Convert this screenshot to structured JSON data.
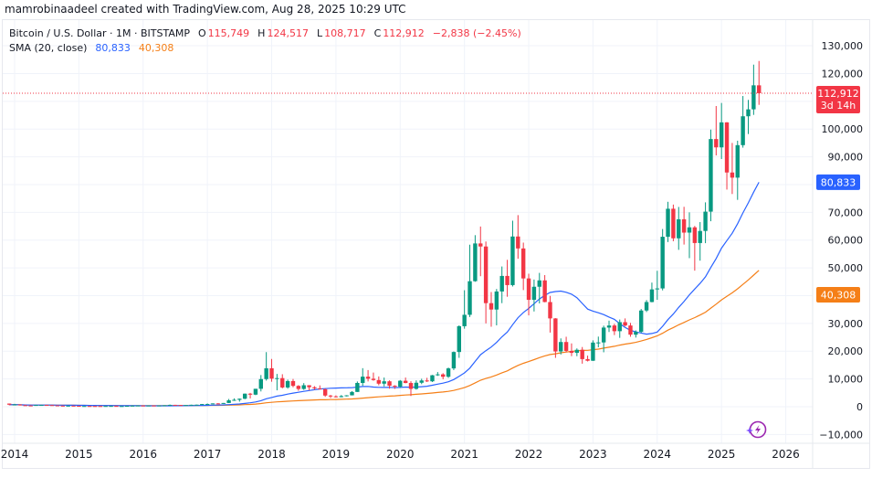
{
  "credit": "mamrobinaadeel created with TradingView.com, Aug 28, 2025 10:29 UTC",
  "legend": {
    "symbol": "Bitcoin / U.S. Dollar · 1M · BITSTAMP",
    "o_label": "O",
    "o": "115,749",
    "h_label": "H",
    "h": "124,517",
    "l_label": "L",
    "l": "108,717",
    "c_label": "C",
    "c": "112,912",
    "change": "−2,838 (−2.45%)",
    "sma_label": "SMA (20, close)",
    "sma1": "80,833",
    "sma2": "40,308"
  },
  "price_labels": {
    "last": "112,912",
    "countdown": "3d 14h",
    "sma1": "80,833",
    "sma2": "40,308"
  },
  "colors": {
    "up": "#089981",
    "down": "#f23645",
    "sma1": "#2962ff",
    "sma2": "#f57f17",
    "grid": "#f0f3fa"
  },
  "icons": {
    "bottom_right": "tradingview-assistant-lightning-icon"
  },
  "chart_data": {
    "type": "candlestick",
    "interval": "1M",
    "ylim": [
      -10000,
      130000
    ],
    "y_ticks": [
      "130,000",
      "120,000",
      "100,000",
      "90,000",
      "70,000",
      "60,000",
      "50,000",
      "30,000",
      "20,000",
      "10,000",
      "0",
      "−10,000"
    ],
    "y_tick_values": [
      130000,
      120000,
      100000,
      90000,
      70000,
      60000,
      50000,
      30000,
      20000,
      10000,
      0,
      -10000
    ],
    "x_ticks": [
      "2014",
      "2015",
      "2016",
      "2017",
      "2018",
      "2019",
      "2020",
      "2021",
      "2022",
      "2023",
      "2024",
      "2025",
      "2026"
    ],
    "grid": true,
    "last_price": 112912,
    "sma_values": [
      80833,
      40308
    ],
    "candles_columns": [
      "month",
      "open",
      "high",
      "low",
      "close"
    ],
    "candles": [
      [
        "2013-12",
        1129,
        1163,
        522,
        732
      ],
      [
        "2014-01",
        732,
        1020,
        740,
        800
      ],
      [
        "2014-02",
        800,
        800,
        420,
        550
      ],
      [
        "2014-03",
        550,
        720,
        440,
        450
      ],
      [
        "2014-04",
        450,
        550,
        340,
        445
      ],
      [
        "2014-05",
        445,
        630,
        430,
        625
      ],
      [
        "2014-06",
        625,
        680,
        560,
        640
      ],
      [
        "2014-07",
        640,
        660,
        570,
        585
      ],
      [
        "2014-08",
        585,
        600,
        440,
        480
      ],
      [
        "2014-09",
        480,
        490,
        360,
        387
      ],
      [
        "2014-10",
        387,
        415,
        275,
        338
      ],
      [
        "2014-11",
        338,
        460,
        320,
        378
      ],
      [
        "2014-12",
        378,
        390,
        305,
        320
      ],
      [
        "2015-01",
        320,
        320,
        166,
        218
      ],
      [
        "2015-02",
        218,
        265,
        212,
        254
      ],
      [
        "2015-03",
        254,
        300,
        235,
        244
      ],
      [
        "2015-04",
        244,
        262,
        214,
        236
      ],
      [
        "2015-05",
        236,
        248,
        227,
        230
      ],
      [
        "2015-06",
        230,
        268,
        220,
        263
      ],
      [
        "2015-07",
        263,
        318,
        255,
        284
      ],
      [
        "2015-08",
        284,
        285,
        197,
        230
      ],
      [
        "2015-09",
        230,
        245,
        225,
        236
      ],
      [
        "2015-10",
        236,
        335,
        236,
        314
      ],
      [
        "2015-11",
        314,
        495,
        306,
        377
      ],
      [
        "2015-12",
        377,
        465,
        350,
        430
      ],
      [
        "2016-01",
        430,
        465,
        350,
        368
      ],
      [
        "2016-02",
        368,
        440,
        365,
        437
      ],
      [
        "2016-03",
        437,
        440,
        405,
        416
      ],
      [
        "2016-04",
        416,
        468,
        412,
        448
      ],
      [
        "2016-05",
        448,
        550,
        436,
        531
      ],
      [
        "2016-06",
        531,
        780,
        530,
        673
      ],
      [
        "2016-07",
        673,
        705,
        600,
        624
      ],
      [
        "2016-08",
        624,
        625,
        480,
        573
      ],
      [
        "2016-09",
        573,
        612,
        570,
        608
      ],
      [
        "2016-10",
        608,
        720,
        605,
        700
      ],
      [
        "2016-11",
        700,
        760,
        680,
        742
      ],
      [
        "2016-12",
        742,
        975,
        740,
        963
      ],
      [
        "2017-01",
        963,
        1160,
        750,
        970
      ],
      [
        "2017-02",
        970,
        1215,
        915,
        1190
      ],
      [
        "2017-03",
        1190,
        1300,
        890,
        1080
      ],
      [
        "2017-04",
        1080,
        1350,
        1060,
        1348
      ],
      [
        "2017-05",
        1348,
        2790,
        1340,
        2300
      ],
      [
        "2017-06",
        2300,
        3000,
        2100,
        2480
      ],
      [
        "2017-07",
        2480,
        2950,
        1830,
        2875
      ],
      [
        "2017-08",
        2875,
        4760,
        2700,
        4700
      ],
      [
        "2017-09",
        4700,
        4980,
        2970,
        4340
      ],
      [
        "2017-10",
        4340,
        6450,
        4160,
        6450
      ],
      [
        "2017-11",
        6450,
        11400,
        5500,
        9950
      ],
      [
        "2017-12",
        9950,
        19666,
        9400,
        13850
      ],
      [
        "2018-01",
        13850,
        17200,
        9000,
        10100
      ],
      [
        "2018-02",
        10100,
        11800,
        5900,
        10300
      ],
      [
        "2018-03",
        10300,
        11700,
        6600,
        6930
      ],
      [
        "2018-04",
        6930,
        9760,
        6500,
        9240
      ],
      [
        "2018-05",
        9240,
        10000,
        7000,
        7500
      ],
      [
        "2018-06",
        7500,
        7760,
        5750,
        6390
      ],
      [
        "2018-07",
        6390,
        8500,
        6070,
        7730
      ],
      [
        "2018-08",
        7730,
        7760,
        5880,
        7010
      ],
      [
        "2018-09",
        7010,
        7400,
        6100,
        6625
      ],
      [
        "2018-10",
        6625,
        7680,
        6200,
        6300
      ],
      [
        "2018-11",
        6300,
        6580,
        3550,
        4020
      ],
      [
        "2018-12",
        4020,
        4250,
        3120,
        3740
      ],
      [
        "2019-01",
        3740,
        4080,
        3350,
        3450
      ],
      [
        "2019-02",
        3450,
        4200,
        3380,
        3820
      ],
      [
        "2019-03",
        3820,
        4150,
        3700,
        4100
      ],
      [
        "2019-04",
        4100,
        5600,
        4070,
        5320
      ],
      [
        "2019-05",
        5320,
        9090,
        5320,
        8560
      ],
      [
        "2019-06",
        8560,
        13880,
        7500,
        10820
      ],
      [
        "2019-07",
        10820,
        13200,
        9100,
        10080
      ],
      [
        "2019-08",
        10080,
        12300,
        9350,
        9600
      ],
      [
        "2019-09",
        9600,
        10900,
        7700,
        8300
      ],
      [
        "2019-10",
        8300,
        10500,
        7300,
        9150
      ],
      [
        "2019-11",
        9150,
        9500,
        6500,
        7550
      ],
      [
        "2019-12",
        7550,
        7750,
        6420,
        7190
      ],
      [
        "2020-01",
        7190,
        9600,
        6850,
        9350
      ],
      [
        "2020-02",
        9350,
        10500,
        8450,
        8540
      ],
      [
        "2020-03",
        8540,
        9180,
        3850,
        6420
      ],
      [
        "2020-04",
        6420,
        9480,
        6150,
        8630
      ],
      [
        "2020-05",
        8630,
        10080,
        8120,
        9450
      ],
      [
        "2020-06",
        9450,
        10400,
        8900,
        9140
      ],
      [
        "2020-07",
        9140,
        11440,
        8900,
        11330
      ],
      [
        "2020-08",
        11330,
        12480,
        11100,
        11650
      ],
      [
        "2020-09",
        11650,
        12070,
        9880,
        10780
      ],
      [
        "2020-10",
        10780,
        14100,
        10400,
        13800
      ],
      [
        "2020-11",
        13800,
        19900,
        13200,
        19700
      ],
      [
        "2020-12",
        19700,
        29300,
        17600,
        28990
      ],
      [
        "2021-01",
        28990,
        41950,
        28100,
        33100
      ],
      [
        "2021-02",
        33100,
        58350,
        32300,
        45200
      ],
      [
        "2021-03",
        45200,
        61780,
        45000,
        58800
      ],
      [
        "2021-04",
        58800,
        64900,
        47000,
        57700
      ],
      [
        "2021-05",
        57700,
        59500,
        30000,
        37300
      ],
      [
        "2021-06",
        37300,
        41300,
        28800,
        35000
      ],
      [
        "2021-07",
        35000,
        42400,
        29300,
        41500
      ],
      [
        "2021-08",
        41500,
        50500,
        37300,
        47100
      ],
      [
        "2021-09",
        47100,
        52900,
        39600,
        43800
      ],
      [
        "2021-10",
        43800,
        67000,
        43300,
        61300
      ],
      [
        "2021-11",
        61300,
        69000,
        53300,
        57000
      ],
      [
        "2021-12",
        57000,
        59100,
        42000,
        46200
      ],
      [
        "2022-01",
        46200,
        47900,
        32900,
        38500
      ],
      [
        "2022-02",
        38500,
        45800,
        34300,
        43200
      ],
      [
        "2022-03",
        43200,
        48200,
        37200,
        45500
      ],
      [
        "2022-04",
        45500,
        47400,
        37600,
        37700
      ],
      [
        "2022-05",
        37700,
        39900,
        26700,
        31800
      ],
      [
        "2022-06",
        31800,
        31900,
        17600,
        19900
      ],
      [
        "2022-07",
        19900,
        24600,
        18800,
        23300
      ],
      [
        "2022-08",
        23300,
        25200,
        19600,
        20100
      ],
      [
        "2022-09",
        20100,
        22800,
        18200,
        19400
      ],
      [
        "2022-10",
        19400,
        21000,
        18200,
        20500
      ],
      [
        "2022-11",
        20500,
        21500,
        15500,
        17150
      ],
      [
        "2022-12",
        17150,
        18400,
        16300,
        16550
      ],
      [
        "2023-01",
        16550,
        23900,
        16500,
        23100
      ],
      [
        "2023-02",
        23100,
        25250,
        21400,
        23150
      ],
      [
        "2023-03",
        23150,
        29200,
        19600,
        28500
      ],
      [
        "2023-04",
        28500,
        31000,
        26900,
        29250
      ],
      [
        "2023-05",
        29250,
        29850,
        25800,
        27200
      ],
      [
        "2023-06",
        27200,
        31400,
        24800,
        30450
      ],
      [
        "2023-07",
        30450,
        31800,
        28900,
        29250
      ],
      [
        "2023-08",
        29250,
        30200,
        25200,
        25950
      ],
      [
        "2023-09",
        25950,
        27500,
        24900,
        26950
      ],
      [
        "2023-10",
        26950,
        35200,
        26600,
        34650
      ],
      [
        "2023-11",
        34650,
        38400,
        34100,
        37700
      ],
      [
        "2023-12",
        37700,
        44700,
        37600,
        42250
      ],
      [
        "2024-01",
        42250,
        48950,
        38500,
        42600
      ],
      [
        "2024-02",
        42600,
        64000,
        41900,
        61200
      ],
      [
        "2024-03",
        61200,
        73800,
        59300,
        71300
      ],
      [
        "2024-04",
        71300,
        72800,
        59600,
        60650
      ],
      [
        "2024-05",
        60650,
        71950,
        56500,
        67500
      ],
      [
        "2024-06",
        67500,
        72000,
        58400,
        62700
      ],
      [
        "2024-07",
        62700,
        70000,
        53500,
        64600
      ],
      [
        "2024-08",
        64600,
        65100,
        49000,
        58950
      ],
      [
        "2024-09",
        58950,
        66500,
        52600,
        63300
      ],
      [
        "2024-10",
        63300,
        73600,
        58900,
        70250
      ],
      [
        "2024-11",
        70250,
        99800,
        66800,
        96400
      ],
      [
        "2024-12",
        96400,
        108300,
        90500,
        93400
      ],
      [
        "2025-01",
        93400,
        109400,
        89200,
        102400
      ],
      [
        "2025-02",
        102400,
        102500,
        78200,
        84350
      ],
      [
        "2025-03",
        84350,
        95000,
        76600,
        82500
      ],
      [
        "2025-04",
        82500,
        95800,
        74500,
        94200
      ],
      [
        "2025-05",
        94200,
        111900,
        93300,
        104600
      ],
      [
        "2025-06",
        104600,
        110500,
        98200,
        107100
      ],
      [
        "2025-07",
        107100,
        123200,
        105100,
        115750
      ],
      [
        "2025-08",
        115749,
        124517,
        108717,
        112912
      ]
    ]
  }
}
